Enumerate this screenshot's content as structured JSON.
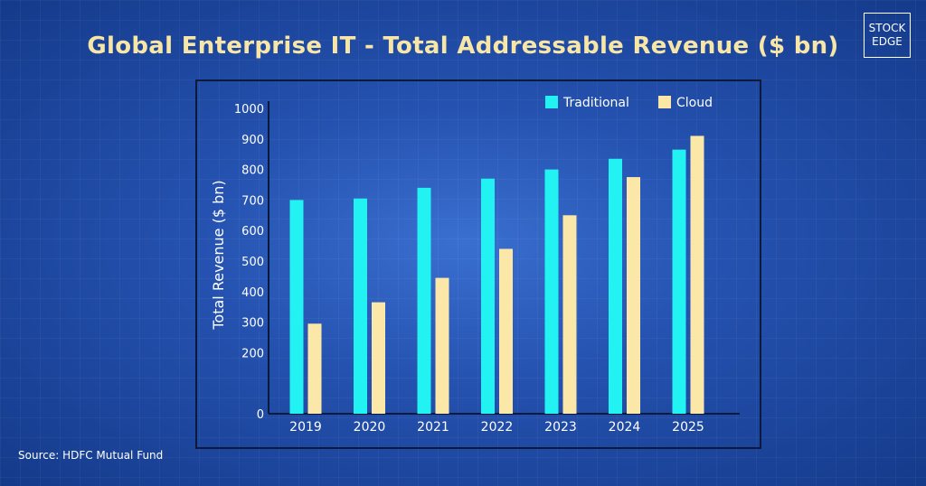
{
  "header": {
    "title": "Global Enterprise IT - Total Addressable Revenue ($ bn)"
  },
  "logo": {
    "line1": "STOCK",
    "line2": "EDGE"
  },
  "footer": {
    "source": "Source: HDFC Mutual Fund"
  },
  "colors": {
    "traditional": "#22f2f2",
    "cloud": "#fbe8a8",
    "text": "#ffffff",
    "axis": "#0b1a3a"
  },
  "chart_data": {
    "type": "bar",
    "title": "Global Enterprise IT - Total Addressable Revenue ($ bn)",
    "xlabel": "",
    "ylabel": "Total Revenue ($ bn)",
    "ylim": [
      0,
      1000
    ],
    "yticks": [
      0,
      200,
      300,
      400,
      500,
      600,
      700,
      800,
      900,
      1000
    ],
    "categories": [
      "2019",
      "2020",
      "2021",
      "2022",
      "2023",
      "2024",
      "2025"
    ],
    "series": [
      {
        "name": "Traditional",
        "values": [
          700,
          705,
          740,
          770,
          800,
          835,
          865
        ]
      },
      {
        "name": "Cloud",
        "values": [
          295,
          365,
          445,
          540,
          650,
          775,
          910
        ]
      }
    ],
    "legend": "top-right"
  }
}
